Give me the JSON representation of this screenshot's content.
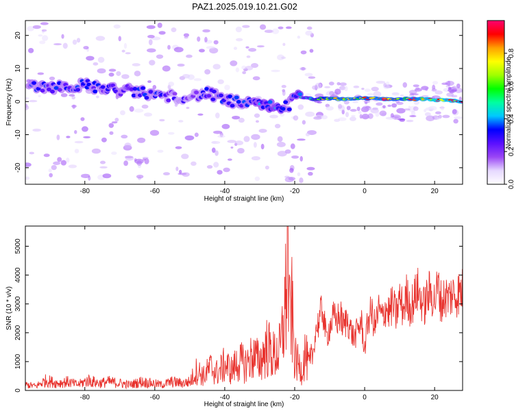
{
  "title": "PAZ1.2025.019.10.21.G02",
  "colorbar": {
    "label": "Normalized spectral amplitude",
    "range": [
      0.0,
      1.0
    ],
    "ticks": [
      0.0,
      0.2,
      0.4,
      0.6,
      0.8
    ],
    "tick_labels": [
      "0.0",
      "0.2",
      "0.4",
      "0.6",
      "0.8"
    ],
    "colormap": [
      "#ffffff",
      "#e6d8ff",
      "#9a46f5",
      "#5a10ff",
      "#0000ff",
      "#00c8ff",
      "#00ffa0",
      "#00ff00",
      "#a0ff00",
      "#ffff00",
      "#ffa000",
      "#ff0000",
      "#ff0070"
    ]
  },
  "chart_data": [
    {
      "type": "heatmap",
      "xlabel": "Height of straight line (km)",
      "ylabel": "Frequency (Hz)",
      "xlim": [
        -97,
        28
      ],
      "ylim": [
        -25,
        24.5
      ],
      "xticks": [
        -80,
        -60,
        -40,
        -20,
        0,
        20
      ],
      "xtick_labels": [
        "-80",
        "-60",
        "-40",
        "-20",
        "0",
        "20"
      ],
      "yticks": [
        -20,
        -10,
        0,
        10,
        20
      ],
      "ytick_labels": [
        "-20",
        "-10",
        "0",
        "10",
        "20"
      ],
      "ridge": {
        "x": [
          -96,
          -90,
          -85,
          -80,
          -75,
          -70,
          -65,
          -60,
          -55,
          -50,
          -45,
          -40,
          -35,
          -30,
          -25,
          -22,
          -20,
          -15,
          -10,
          -5,
          0,
          5,
          10,
          15,
          20,
          25,
          28
        ],
        "freq": [
          5,
          4.5,
          4.5,
          5,
          4,
          3.5,
          3,
          2,
          1.5,
          1.5,
          2.5,
          0.5,
          -0.5,
          -1,
          -1.5,
          -1.5,
          1.5,
          0.8,
          0.8,
          0.8,
          1,
          0.8,
          0.8,
          0.8,
          0.5,
          0.2,
          0
        ],
        "amplitude": [
          0.3,
          0.3,
          0.3,
          0.3,
          0.3,
          0.3,
          0.3,
          0.3,
          0.25,
          0.25,
          0.3,
          0.3,
          0.3,
          0.35,
          0.4,
          0.3,
          0.35,
          0.6,
          0.8,
          0.85,
          0.8,
          0.85,
          0.8,
          0.85,
          0.95,
          0.9,
          0.9
        ]
      }
    },
    {
      "type": "line",
      "xlabel": "Height of straight line (km)",
      "ylabel": "SNR (10 * v/v)",
      "xlim": [
        -97,
        28
      ],
      "ylim": [
        0,
        5700
      ],
      "xticks": [
        -80,
        -60,
        -40,
        -20,
        0,
        20
      ],
      "xtick_labels": [
        "-80",
        "-60",
        "-40",
        "-20",
        "0",
        "20"
      ],
      "yticks": [
        0,
        1000,
        2000,
        3000,
        4000,
        5000
      ],
      "ytick_labels": [
        "0",
        "1000",
        "2000",
        "3000",
        "4000",
        "5000"
      ],
      "series_color": "#e8332e",
      "series": [
        {
          "x": [
            -97,
            -94,
            -91,
            -88,
            -85,
            -82,
            -79,
            -76,
            -73,
            -70,
            -67,
            -64,
            -61,
            -58,
            -55,
            -52,
            -50,
            -48,
            -46,
            -44,
            -42,
            -40,
            -38,
            -36,
            -34,
            -32,
            -30,
            -28,
            -26,
            -24,
            -22.5,
            -22,
            -21.5,
            -21,
            -20,
            -19,
            -18,
            -17,
            -16,
            -15,
            -14,
            -13,
            -12,
            -11,
            -10,
            -9,
            -8,
            -7,
            -6,
            -5,
            -4,
            -3,
            -2,
            -1,
            0,
            1,
            2,
            3,
            4,
            5,
            6,
            7,
            8,
            9,
            10,
            11,
            12,
            13,
            14,
            15,
            16,
            17,
            18,
            19,
            20,
            21,
            22,
            23,
            24,
            25,
            26,
            27,
            28
          ],
          "y": [
            200,
            150,
            350,
            250,
            300,
            200,
            350,
            250,
            300,
            250,
            200,
            300,
            250,
            200,
            300,
            250,
            300,
            700,
            500,
            800,
            600,
            900,
            700,
            1000,
            900,
            1200,
            1000,
            1500,
            1200,
            1400,
            3200,
            5650,
            2200,
            3100,
            1100,
            900,
            700,
            1300,
            800,
            1000,
            2100,
            2400,
            2900,
            1800,
            2200,
            2500,
            2400,
            2600,
            2200,
            2500,
            2100,
            1800,
            2100,
            2400,
            1400,
            2500,
            2700,
            2200,
            2800,
            2500,
            2900,
            2700,
            3000,
            2600,
            3200,
            2800,
            3300,
            2900,
            3100,
            3500,
            3200,
            2900,
            3300,
            3400,
            3100,
            3600,
            3000,
            3300,
            3200,
            3350,
            3300,
            3400,
            3450
          ]
        }
      ]
    }
  ]
}
